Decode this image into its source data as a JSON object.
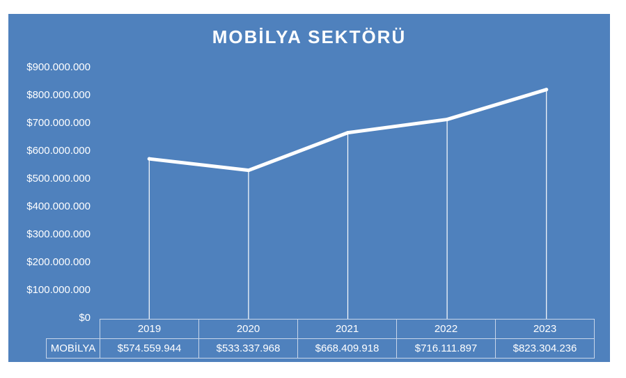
{
  "chart_data": {
    "type": "line",
    "title": "MOBİLYA SEKTÖRÜ",
    "categories": [
      "2019",
      "2020",
      "2021",
      "2022",
      "2023"
    ],
    "series": [
      {
        "name": "MOBİLYA",
        "values": [
          574559944,
          533337968,
          668409918,
          716111897,
          823304236
        ]
      }
    ],
    "value_labels": [
      "$574.559.944",
      "$533.337.968",
      "$668.409.918",
      "$716.111.897",
      "$823.304.236"
    ],
    "yticks": [
      "$0",
      "$100.000.000",
      "$200.000.000",
      "$300.000.000",
      "$400.000.000",
      "$500.000.000",
      "$600.000.000",
      "$700.000.000",
      "$800.000.000",
      "$900.000.000"
    ],
    "ylim": [
      0,
      900000000
    ],
    "drop_lines": true,
    "grid": false,
    "data_table": true,
    "colors": {
      "background": "#4f81bd",
      "line": "#ffffff",
      "text": "#ffffff"
    }
  }
}
